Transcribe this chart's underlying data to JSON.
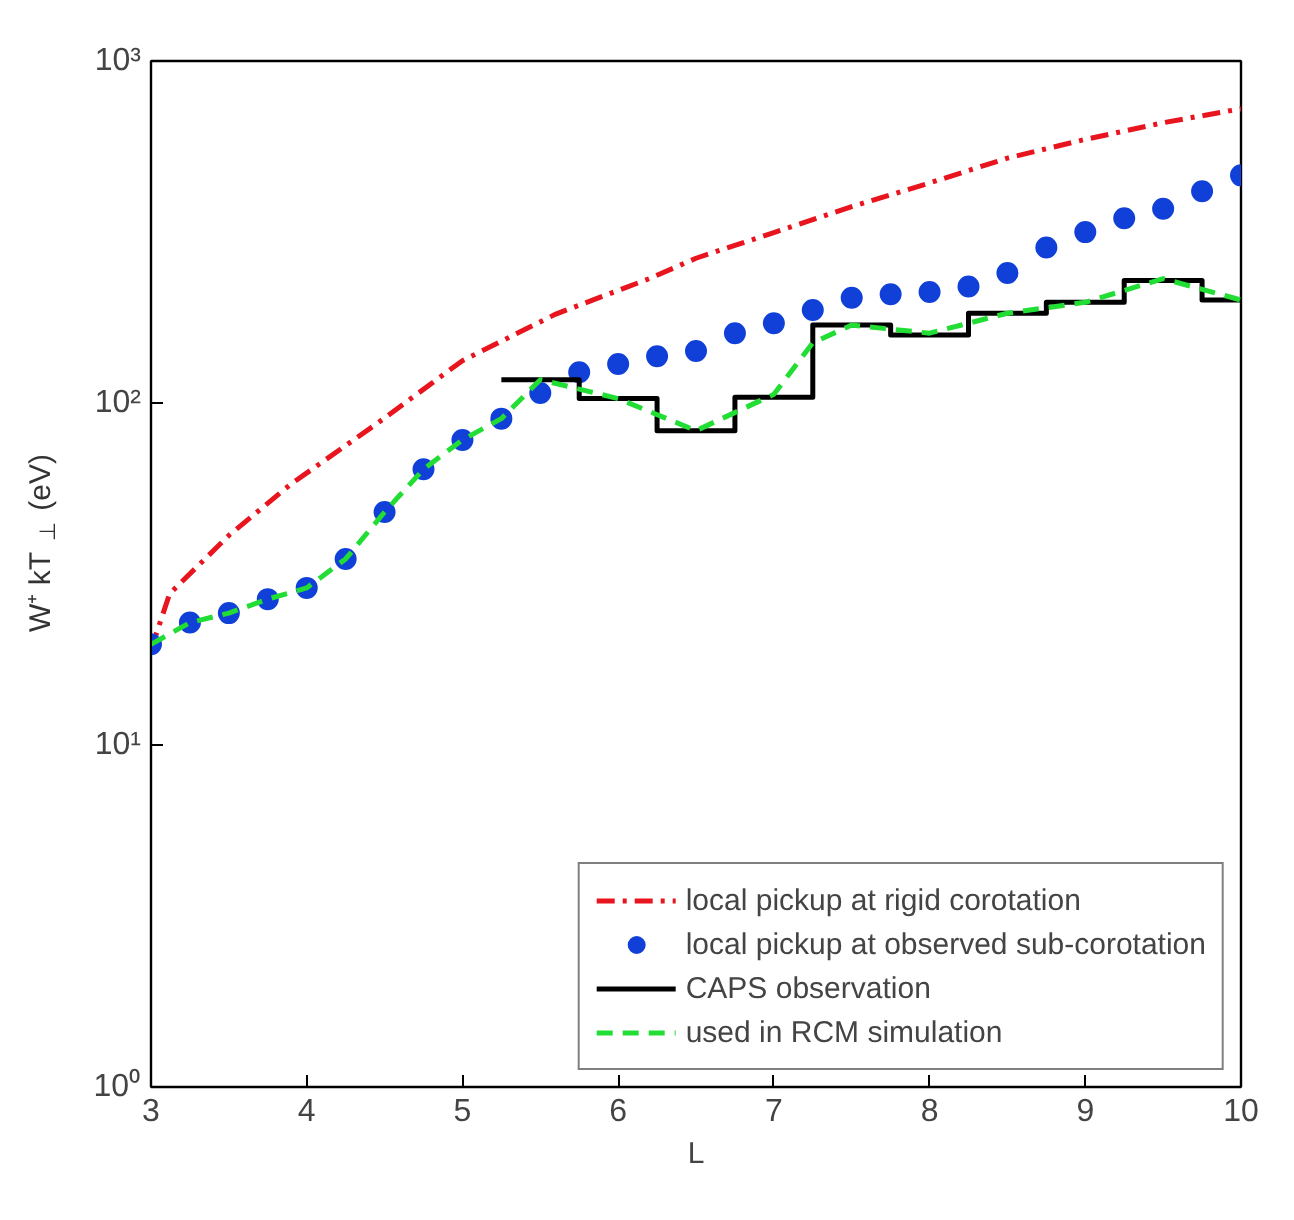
{
  "chart_data": {
    "type": "line",
    "xlabel": "L",
    "ylabel": "W⁺  kT$_{⊥}$ (eV)",
    "log": "y",
    "xlim": [
      3,
      10
    ],
    "xticks": [
      3,
      4,
      5,
      6,
      7,
      8,
      9,
      10
    ],
    "ylim": [
      1,
      1000
    ],
    "yticks": [
      {
        "value": 1,
        "label": "10⁰"
      },
      {
        "value": 10,
        "label": "10¹"
      },
      {
        "value": 100,
        "label": "10²"
      },
      {
        "value": 1000,
        "label": "10³"
      }
    ],
    "grid": false,
    "legend": "bottom right",
    "series": [
      {
        "name": "local pickup at rigid corotation",
        "line_style": "dashdot",
        "color": "#e8141e",
        "x": [
          3,
          3.12,
          3.5,
          3.9,
          4.45,
          5.0,
          5.6,
          6.2,
          6.5,
          7.0,
          7.5,
          8.0,
          8.5,
          9.0,
          9.5,
          10
        ],
        "values": [
          19,
          27.7,
          41,
          58,
          87,
          133,
          182,
          231,
          265,
          315,
          375,
          440,
          520,
          590,
          660,
          725
        ]
      },
      {
        "name": "local pickup at observed sub-corotation",
        "type": "scatter",
        "marker": "circle",
        "color": "#1040d8",
        "x": [
          3,
          3.25,
          3.5,
          3.75,
          4,
          4.25,
          4.5,
          4.75,
          5,
          5.25,
          5.5,
          5.75,
          6,
          6.25,
          6.5,
          6.75,
          7,
          7.25,
          7.5,
          7.75,
          8,
          8.25,
          8.5,
          8.75,
          9,
          9.25,
          9.5,
          9.75,
          10
        ],
        "values": [
          19.7,
          22.8,
          24.3,
          26.7,
          28.8,
          35,
          48,
          64,
          78,
          90,
          107,
          123,
          130,
          137,
          142,
          160,
          171,
          187,
          203,
          208,
          211,
          219,
          240,
          285,
          316,
          347,
          370,
          416,
          463
        ]
      },
      {
        "name": "CAPS observation",
        "type": "step",
        "line_style": "solid",
        "color": "#000000",
        "x": [
          5.25,
          5.75,
          6.25,
          6.75,
          7.25,
          7.75,
          8.25,
          8.75,
          9.25,
          9.75,
          10
        ],
        "values": [
          117,
          103,
          83,
          104,
          169,
          158,
          183,
          197,
          228,
          200,
          200
        ]
      },
      {
        "name": "used in RCM simulation",
        "line_style": "dashed",
        "color": "#22dd33",
        "x": [
          3,
          3.25,
          3.5,
          3.75,
          4,
          4.25,
          4.5,
          4.75,
          5,
          5.25,
          5.5,
          6.0,
          6.5,
          7.0,
          7.25,
          7.5,
          8.0,
          8.5,
          9.0,
          9.5,
          10
        ],
        "values": [
          19.7,
          22.8,
          24.3,
          26.7,
          28.8,
          35,
          48,
          64,
          78,
          90,
          117,
          103,
          83,
          106,
          150,
          169,
          160,
          183,
          197,
          231,
          200
        ]
      }
    ]
  }
}
